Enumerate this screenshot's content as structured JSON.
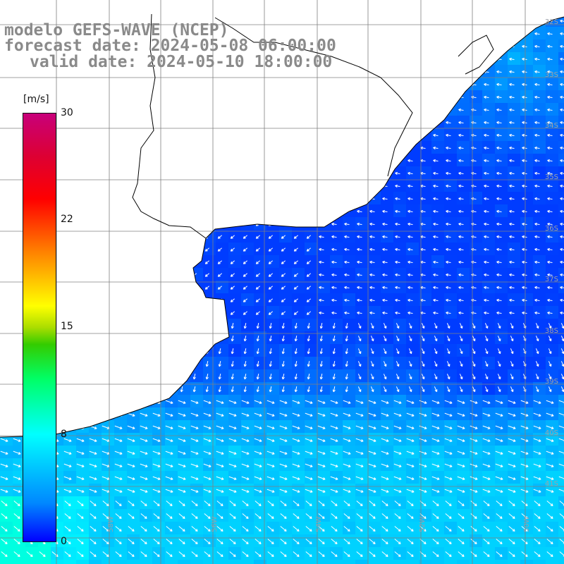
{
  "title": {
    "line1": "modelo GEFS-WAVE (NCEP)",
    "line2": "forecast date: 2024-05-08 06:00:00",
    "line3": "valid date: 2024-05-10 18:00:00"
  },
  "colorbar": {
    "unit": "[m/s]",
    "min": 0,
    "max": 30,
    "ticks": [
      "30",
      "22",
      "15",
      "8",
      "0"
    ],
    "tick_values": [
      30,
      22,
      15,
      8,
      0
    ]
  },
  "grid": {
    "lat_labels": [
      "32S",
      "33S",
      "34S",
      "35S",
      "36S",
      "37S",
      "38S",
      "39S",
      "40S",
      "41S"
    ],
    "lon_labels": [
      "58W",
      "56W",
      "54W",
      "52W",
      "50W"
    ]
  },
  "colors": {
    "land": "#ffffff",
    "coast": "#000000",
    "grid": "#808080",
    "arrow": "#ffffff",
    "label": "#8a8a8a"
  }
}
